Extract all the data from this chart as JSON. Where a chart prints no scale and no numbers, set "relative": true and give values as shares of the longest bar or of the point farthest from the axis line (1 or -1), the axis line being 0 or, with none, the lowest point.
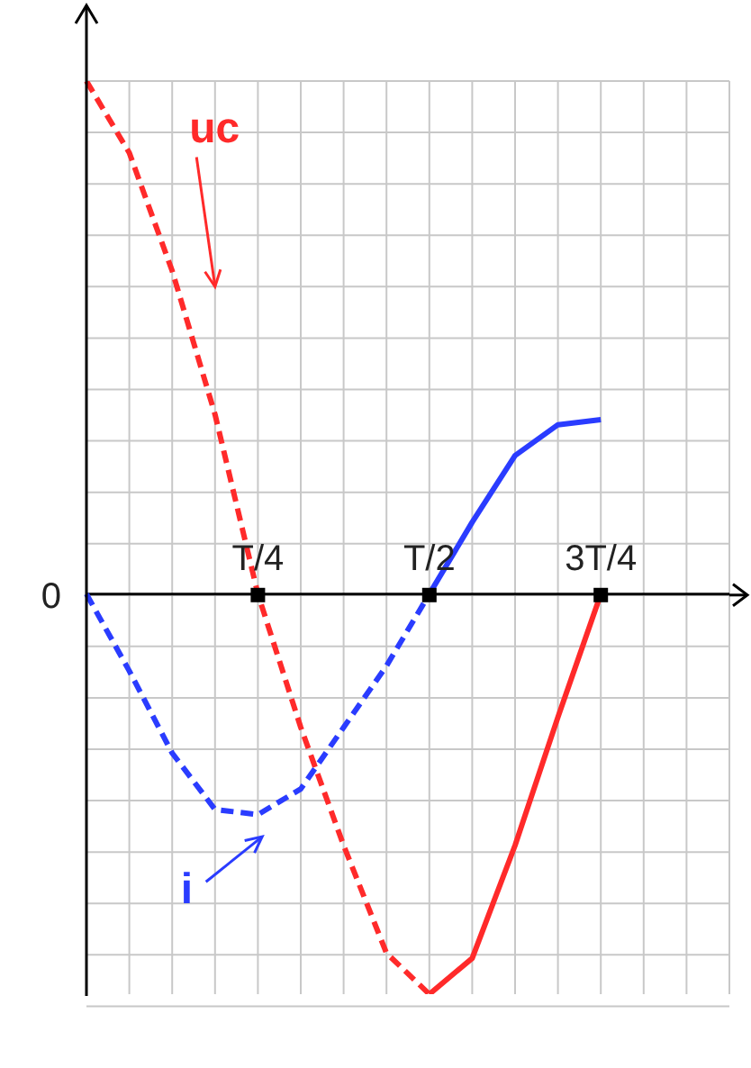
{
  "chart_data": {
    "type": "line",
    "relative": true,
    "grid": true,
    "categories": [
      null,
      null,
      null,
      null,
      "T/4",
      null,
      null,
      null,
      "T/2",
      null,
      null,
      null,
      "3T/4",
      null,
      null,
      null
    ],
    "series": [
      {
        "color": "#ff2a2a",
        "line_style": "dashed",
        "values": [
          1,
          0.86,
          0.63,
          0.35,
          0,
          -0.26,
          -0.49,
          -0.7,
          -0.78,
          null,
          null,
          null,
          null,
          null,
          null,
          null
        ]
      },
      {
        "color": "#ff2a2a",
        "line_style": "solid",
        "values": [
          null,
          null,
          null,
          null,
          null,
          null,
          null,
          null,
          -0.78,
          -0.71,
          -0.49,
          -0.24,
          0,
          null,
          null,
          null
        ]
      },
      {
        "color": "#2a3cff",
        "line_style": "dashed",
        "values": [
          0,
          -0.15,
          -0.31,
          -0.42,
          -0.43,
          -0.38,
          -0.26,
          -0.14,
          0,
          null,
          null,
          null,
          null,
          null,
          null,
          null
        ]
      },
      {
        "color": "#2a3cff",
        "line_style": "solid",
        "values": [
          null,
          null,
          null,
          null,
          null,
          null,
          null,
          null,
          0,
          0.14,
          0.27,
          0.33,
          0.34,
          null,
          null,
          null
        ]
      }
    ],
    "annotations": [
      "uc",
      "i",
      "0"
    ]
  }
}
